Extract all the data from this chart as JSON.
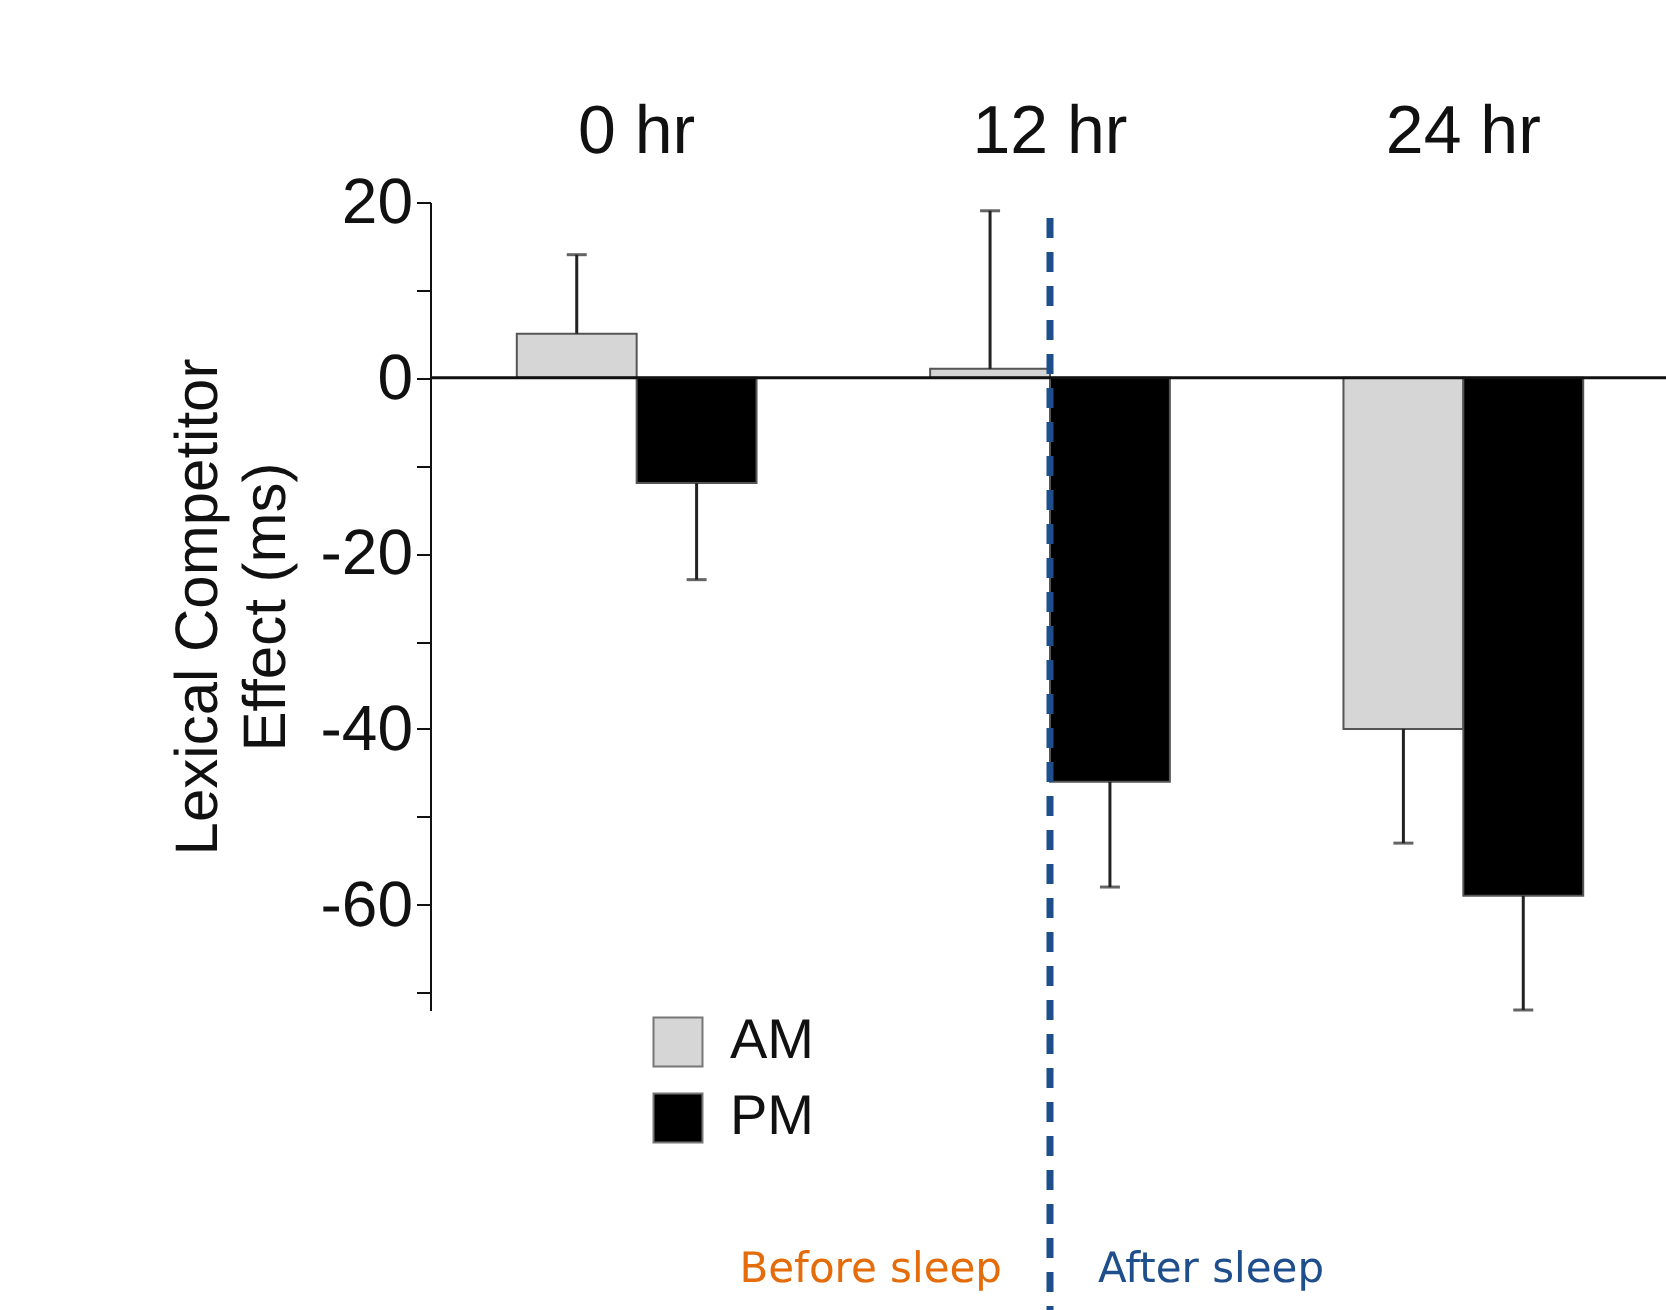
{
  "chart_data": {
    "type": "bar",
    "categories": [
      "0 hr",
      "12 hr",
      "24 hr"
    ],
    "ylabel": "Lexical Competitor Effect (ms)",
    "series": [
      {
        "name": "AM",
        "color": "#d6d6d6",
        "values": [
          5,
          1,
          -40
        ],
        "errors": [
          [
            5,
            14
          ],
          [
            1,
            19
          ],
          [
            -53,
            -40
          ]
        ]
      },
      {
        "name": "PM",
        "color": "#000000",
        "values": [
          -12,
          -46,
          -59
        ],
        "errors": [
          [
            -23,
            -12
          ],
          [
            -58,
            -46
          ],
          [
            -72,
            -59
          ]
        ]
      }
    ],
    "ylim": [
      -72,
      20
    ],
    "yticks": [
      {
        "value": -70,
        "label": null
      },
      -60,
      {
        "value": -50,
        "label": null
      },
      -40,
      {
        "value": -30,
        "label": null
      },
      -20,
      {
        "value": -10,
        "label": null
      },
      0,
      {
        "value": 10,
        "label": null
      },
      20
    ],
    "ref_lines": [
      {
        "axis": "x",
        "value": "12 hr",
        "color": "#1f4e8c",
        "line_style": "dashed"
      }
    ],
    "annotations": [
      "Before sleep",
      "After sleep"
    ],
    "legend": "bottom left",
    "grid": false
  }
}
